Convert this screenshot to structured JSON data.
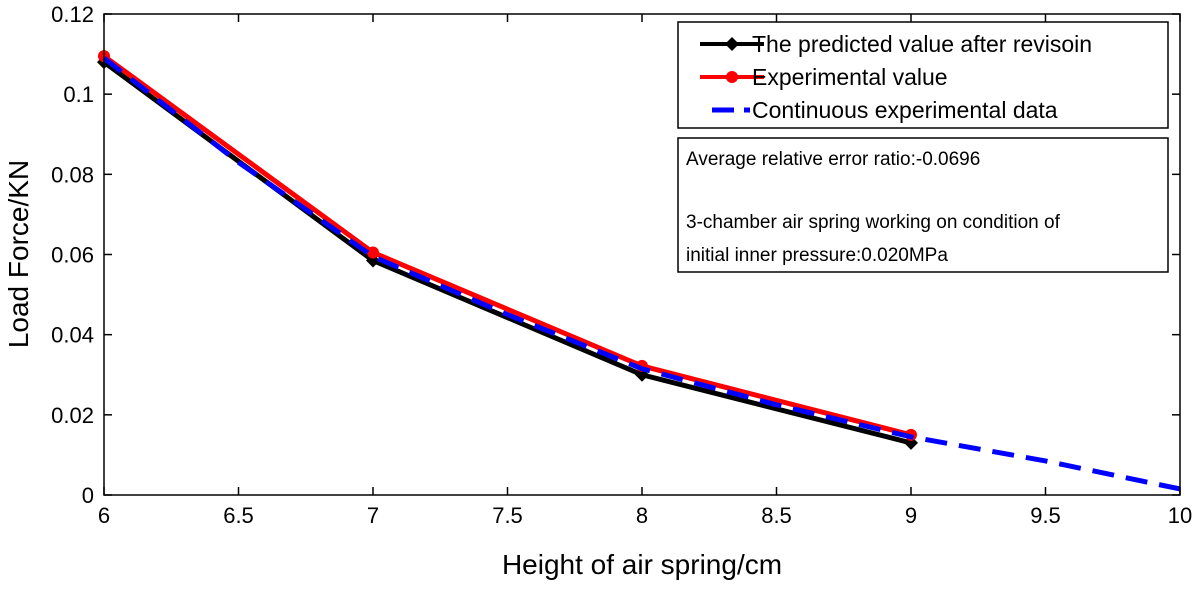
{
  "chart_data": {
    "type": "line",
    "xlabel": "Height of air spring/cm",
    "ylabel": "Load Force/KN",
    "xlim": [
      6,
      10
    ],
    "ylim": [
      0,
      0.12
    ],
    "xticks": [
      "6",
      "6.5",
      "7",
      "7.5",
      "8",
      "8.5",
      "9",
      "9.5",
      "10"
    ],
    "yticks": [
      "0",
      "0.02",
      "0.04",
      "0.06",
      "0.08",
      "0.1",
      "0.12"
    ],
    "grid": false,
    "legend_position": "top-right",
    "series": [
      {
        "name": "The predicted value after revisoin",
        "color": "#000000",
        "marker": "diamond",
        "style": "solid",
        "x": [
          6,
          7,
          8,
          9
        ],
        "y": [
          0.108,
          0.0585,
          0.03,
          0.013
        ]
      },
      {
        "name": "Experimental value",
        "color": "#ff0000",
        "marker": "circle",
        "style": "solid",
        "x": [
          6,
          7,
          8,
          9
        ],
        "y": [
          0.1095,
          0.0605,
          0.0322,
          0.015
        ]
      },
      {
        "name": "Continuous experimental data",
        "color": "#0000ff",
        "marker": "none",
        "style": "dashed",
        "x": [
          6,
          6.5,
          7,
          7.5,
          8,
          8.5,
          9,
          9.5,
          10
        ],
        "y": [
          0.109,
          0.083,
          0.0595,
          0.045,
          0.0315,
          0.0225,
          0.0145,
          0.0085,
          0.0015
        ]
      }
    ],
    "annotation": {
      "line1": "Average relative error ratio:-0.0696",
      "line2": "3-chamber air spring working on condition of",
      "line3": "initial inner pressure:0.020MPa"
    }
  }
}
